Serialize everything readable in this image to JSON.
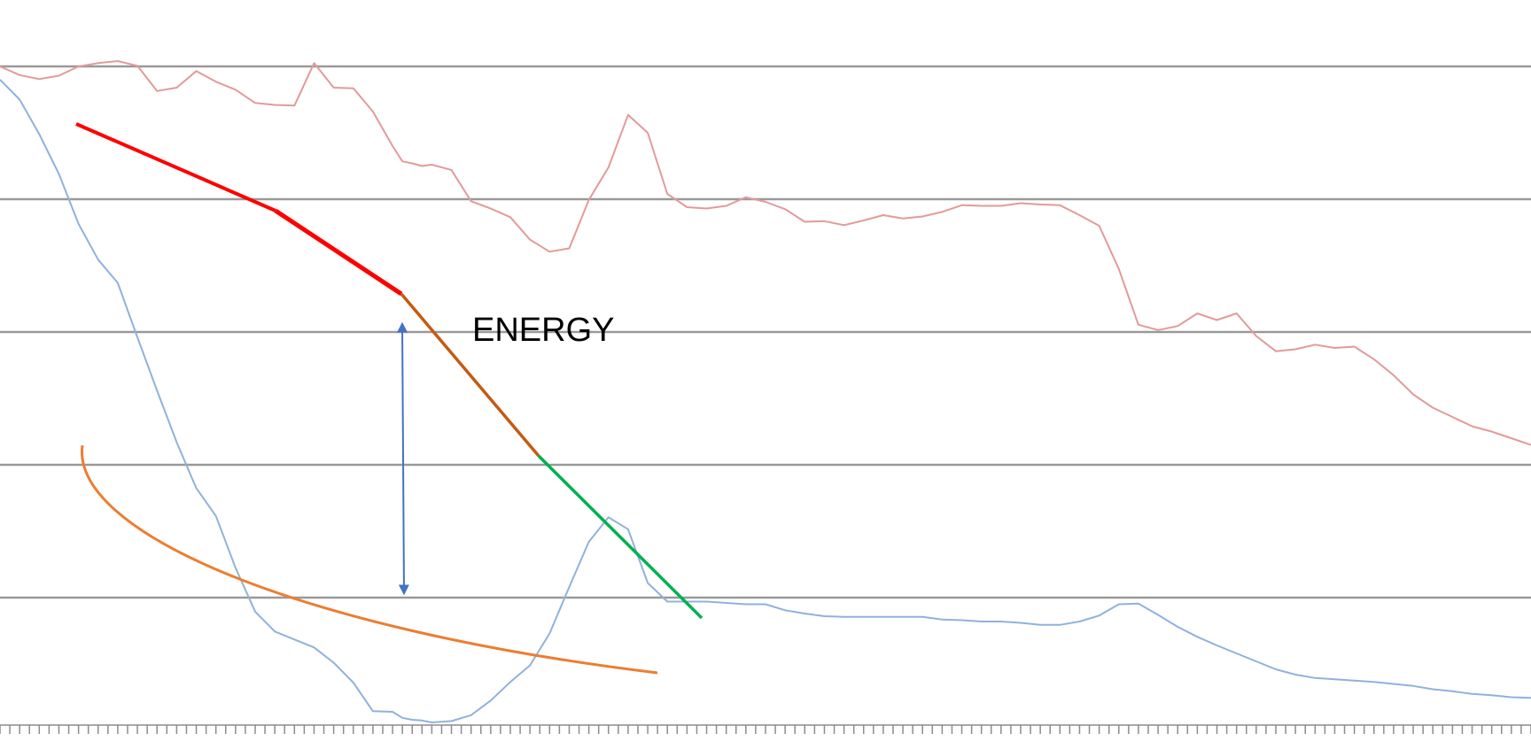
{
  "chart_data": {
    "type": "line",
    "title": "",
    "xlabel": "",
    "ylabel": "",
    "grid": true,
    "legend": "none",
    "xlim": [
      0,
      156
    ],
    "ylim": [
      0,
      100
    ],
    "gridlines": [
      100,
      80,
      60,
      40,
      20
    ],
    "series": [
      {
        "color": "#e39a9a",
        "x": [
          0,
          2,
          4,
          6,
          8,
          10,
          12,
          14,
          16,
          18,
          20,
          22,
          24,
          26,
          28,
          30,
          32,
          34,
          36,
          38,
          40,
          41,
          42,
          43,
          44,
          46,
          48,
          50,
          52,
          54,
          56,
          58,
          60,
          62,
          64,
          66,
          68,
          70,
          72,
          74,
          76,
          78,
          80,
          82,
          84,
          86,
          88,
          90,
          92,
          94,
          96,
          98,
          100,
          102,
          104,
          106,
          108,
          110,
          112,
          114,
          116,
          118,
          120,
          122,
          124,
          126,
          128,
          130,
          132,
          134,
          136,
          138,
          140,
          142,
          144,
          146,
          148,
          150,
          152,
          154,
          156
        ],
        "values": [
          100.0,
          98.7,
          98.1,
          98.6,
          100.0,
          100.5,
          100.8,
          100.1,
          96.3,
          96.8,
          99.3,
          97.7,
          96.5,
          94.5,
          94.2,
          94.1,
          100.5,
          96.8,
          96.7,
          93.2,
          88.0,
          85.7,
          85.4,
          85.0,
          85.2,
          84.4,
          79.7,
          78.6,
          77.3,
          73.9,
          72.1,
          72.6,
          79.9,
          84.8,
          92.7,
          90.0,
          80.8,
          78.8,
          78.6,
          79.0,
          80.3,
          79.6,
          78.5,
          76.6,
          76.7,
          76.1,
          76.8,
          77.6,
          77.1,
          77.4,
          78.1,
          79.1,
          79.0,
          79.0,
          79.4,
          79.2,
          79.1,
          77.6,
          76.0,
          69.5,
          61.1,
          60.3,
          60.9,
          62.8,
          61.8,
          62.8,
          59.4,
          57.1,
          57.4,
          58.1,
          57.6,
          57.8,
          55.9,
          53.5,
          50.6,
          48.6,
          47.2,
          45.8,
          45.0,
          44.0,
          43.0
        ]
      },
      {
        "color": "#8fb2dc",
        "x": [
          0,
          2,
          4,
          6,
          8,
          10,
          12,
          14,
          16,
          18,
          20,
          22,
          24,
          26,
          28,
          30,
          32,
          34,
          36,
          38,
          40,
          41,
          42,
          43,
          44,
          46,
          48,
          50,
          52,
          54,
          56,
          58,
          60,
          62,
          64,
          66,
          68,
          70,
          72,
          74,
          76,
          78,
          80,
          82,
          84,
          86,
          88,
          90,
          92,
          94,
          96,
          98,
          100,
          102,
          104,
          106,
          108,
          110,
          112,
          114,
          116,
          118,
          120,
          122,
          124,
          126,
          128,
          130,
          132,
          134,
          136,
          138,
          140,
          142,
          144,
          146,
          148,
          150,
          152,
          154,
          156
        ],
        "values": [
          98.0,
          95.0,
          89.8,
          83.8,
          76.3,
          70.9,
          67.4,
          59.2,
          51.2,
          43.4,
          36.5,
          32.3,
          24.5,
          17.9,
          14.9,
          13.7,
          12.5,
          10.2,
          7.2,
          2.9,
          2.8,
          1.9,
          1.6,
          1.5,
          1.2,
          1.4,
          2.3,
          4.5,
          7.3,
          9.8,
          14.6,
          21.6,
          28.4,
          32.1,
          30.3,
          22.2,
          19.4,
          19.4,
          19.4,
          19.2,
          19.0,
          19.0,
          18.1,
          17.6,
          17.2,
          17.1,
          17.1,
          17.1,
          17.1,
          17.1,
          16.7,
          16.6,
          16.4,
          16.4,
          16.2,
          15.9,
          15.9,
          16.4,
          17.3,
          19.0,
          19.1,
          17.4,
          15.6,
          14.1,
          12.8,
          11.6,
          10.4,
          9.2,
          8.4,
          7.9,
          7.7,
          7.5,
          7.3,
          7.0,
          6.7,
          6.2,
          5.9,
          5.5,
          5.3,
          5.0,
          4.9
        ]
      }
    ]
  },
  "annotation": {
    "label": "ENERGY"
  }
}
